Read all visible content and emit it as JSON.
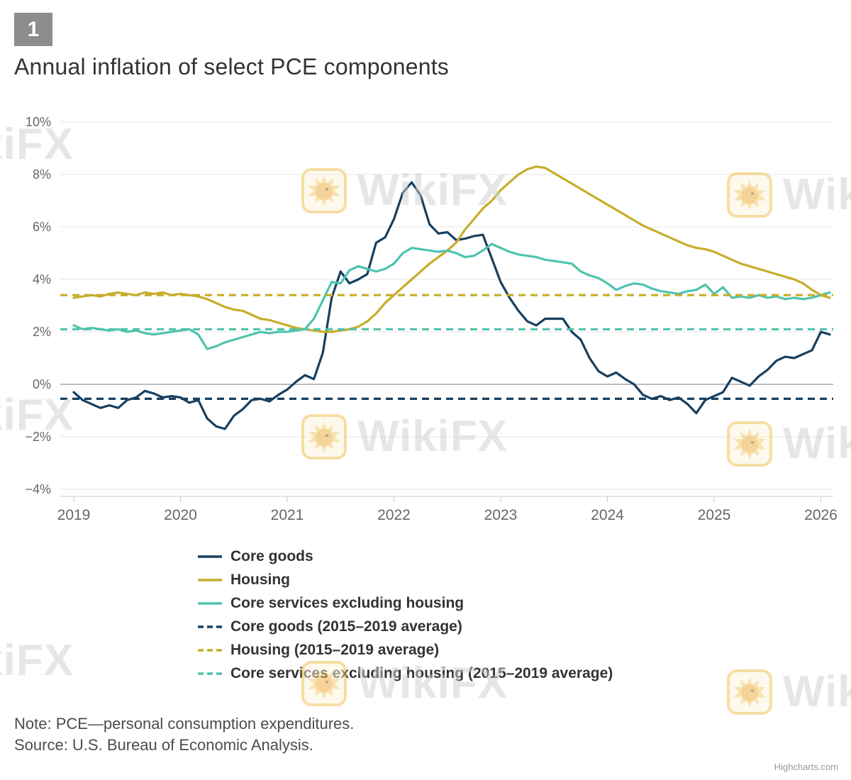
{
  "badge": "1",
  "title": "Annual inflation of select PCE components",
  "note": "Note: PCE—personal consumption expenditures.",
  "source": "Source: U.S. Bureau of Economic Analysis.",
  "credits": "Highcharts.com",
  "watermark": "WikiFX",
  "colors": {
    "badge_bg": "#8d8d8d",
    "grid": "#e6e6e6",
    "zero_line": "#a6a6a6",
    "axis": "#c9c9c9",
    "core_goods": "#173f5f",
    "housing": "#c6ad2a",
    "core_services": "#4ec3ad"
  },
  "chart_data": {
    "type": "line",
    "title": "Annual inflation of select PCE components",
    "xlabel": "",
    "ylabel": "",
    "grid": true,
    "legend_position": "bottom-left",
    "ylim": [
      -4,
      10
    ],
    "xlim": [
      2018.87,
      2026.15
    ],
    "y_ticks": [
      -4,
      -2,
      0,
      2,
      4,
      6,
      8,
      10
    ],
    "y_tick_labels": [
      "−4%",
      "−2%",
      "0%",
      "2%",
      "4%",
      "6%",
      "8%",
      "10%"
    ],
    "x_ticks": [
      2019,
      2020,
      2021,
      2022,
      2023,
      2024,
      2025,
      2026
    ],
    "x_tick_labels": [
      "2019",
      "2020",
      "2021",
      "2022",
      "2023",
      "2024",
      "2025",
      "2026"
    ],
    "x_start_year": 2019,
    "x_step_months": 1,
    "series": [
      {
        "id": "core-goods",
        "name": "Core goods",
        "color": "#173f5f",
        "dash": false,
        "values": [
          -0.3,
          -0.6,
          -0.75,
          -0.9,
          -0.8,
          -0.9,
          -0.6,
          -0.5,
          -0.25,
          -0.35,
          -0.5,
          -0.45,
          -0.5,
          -0.7,
          -0.6,
          -1.3,
          -1.6,
          -1.7,
          -1.2,
          -0.95,
          -0.6,
          -0.55,
          -0.65,
          -0.4,
          -0.2,
          0.1,
          0.35,
          0.2,
          1.2,
          3.3,
          4.3,
          3.85,
          4.0,
          4.2,
          5.4,
          5.6,
          6.3,
          7.3,
          7.7,
          7.2,
          6.1,
          5.75,
          5.8,
          5.5,
          5.55,
          5.65,
          5.7,
          4.8,
          3.9,
          3.3,
          2.8,
          2.4,
          2.25,
          2.5,
          2.5,
          2.5,
          2.0,
          1.7,
          1.0,
          0.5,
          0.3,
          0.45,
          0.2,
          0.0,
          -0.4,
          -0.55,
          -0.45,
          -0.6,
          -0.5,
          -0.75,
          -1.1,
          -0.6,
          -0.45,
          -0.3,
          0.25,
          0.1,
          -0.05,
          0.3,
          0.55,
          0.9,
          1.05,
          1.0,
          1.15,
          1.3,
          2.0,
          1.9
        ]
      },
      {
        "id": "housing",
        "name": "Housing",
        "color": "#c6ad2a",
        "dash": false,
        "values": [
          3.3,
          3.35,
          3.4,
          3.35,
          3.45,
          3.5,
          3.45,
          3.4,
          3.5,
          3.45,
          3.5,
          3.4,
          3.45,
          3.4,
          3.35,
          3.25,
          3.1,
          2.95,
          2.85,
          2.8,
          2.65,
          2.5,
          2.45,
          2.35,
          2.25,
          2.15,
          2.1,
          2.05,
          2.0,
          2.0,
          2.05,
          2.1,
          2.2,
          2.4,
          2.7,
          3.1,
          3.4,
          3.7,
          4.0,
          4.3,
          4.6,
          4.85,
          5.1,
          5.4,
          5.9,
          6.3,
          6.7,
          7.0,
          7.4,
          7.7,
          8.0,
          8.2,
          8.3,
          8.25,
          8.05,
          7.85,
          7.65,
          7.45,
          7.25,
          7.05,
          6.85,
          6.65,
          6.45,
          6.25,
          6.05,
          5.9,
          5.75,
          5.6,
          5.45,
          5.3,
          5.2,
          5.15,
          5.05,
          4.9,
          4.75,
          4.6,
          4.5,
          4.4,
          4.3,
          4.2,
          4.1,
          4.0,
          3.85,
          3.6,
          3.4,
          3.3
        ]
      },
      {
        "id": "core-services",
        "name": "Core services excluding housing",
        "color": "#4ec3ad",
        "dash": false,
        "values": [
          2.25,
          2.1,
          2.15,
          2.1,
          2.05,
          2.1,
          2.0,
          2.05,
          1.95,
          1.9,
          1.95,
          2.0,
          2.05,
          2.1,
          1.9,
          1.35,
          1.45,
          1.6,
          1.7,
          1.8,
          1.9,
          2.0,
          1.95,
          2.0,
          2.0,
          2.05,
          2.1,
          2.5,
          3.2,
          3.9,
          3.85,
          4.35,
          4.5,
          4.4,
          4.3,
          4.4,
          4.6,
          5.0,
          5.2,
          5.15,
          5.1,
          5.05,
          5.1,
          5.0,
          4.85,
          4.9,
          5.1,
          5.35,
          5.2,
          5.05,
          4.95,
          4.9,
          4.85,
          4.75,
          4.7,
          4.65,
          4.6,
          4.3,
          4.15,
          4.05,
          3.85,
          3.6,
          3.75,
          3.85,
          3.8,
          3.65,
          3.55,
          3.5,
          3.45,
          3.55,
          3.6,
          3.8,
          3.45,
          3.7,
          3.3,
          3.35,
          3.3,
          3.4,
          3.3,
          3.35,
          3.25,
          3.3,
          3.25,
          3.3,
          3.4,
          3.5
        ]
      },
      {
        "id": "core-goods-avg",
        "name": "Core goods (2015–2019 average)",
        "color": "#173f5f",
        "dash": true,
        "constant": -0.55
      },
      {
        "id": "housing-avg",
        "name": "Housing (2015–2019 average)",
        "color": "#c6ad2a",
        "dash": true,
        "constant": 3.4
      },
      {
        "id": "core-services-avg",
        "name": "Core services excluding housing (2015–2019 average)",
        "color": "#4ec3ad",
        "dash": true,
        "constant": 2.1
      }
    ]
  }
}
